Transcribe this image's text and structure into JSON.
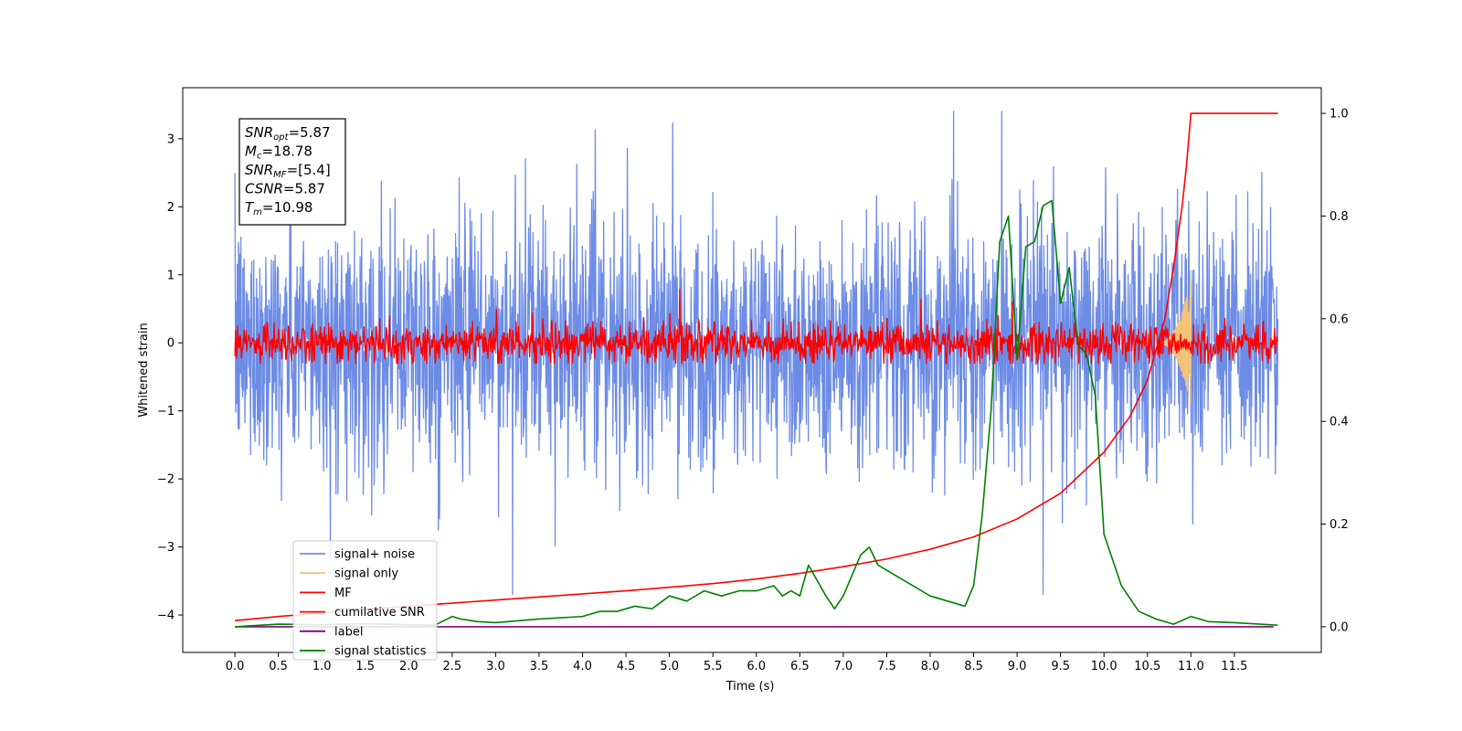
{
  "chart_data": {
    "type": "line",
    "xlabel": "Time (s)",
    "ylabel": "Whitened strain",
    "xlim": [
      -0.6,
      12.5
    ],
    "ylim_left": [
      -4.55,
      3.75
    ],
    "ylim_right": [
      -0.05,
      1.05
    ],
    "x_ticks": [
      "0.0",
      "0.5",
      "1.0",
      "1.5",
      "2.0",
      "2.5",
      "3.0",
      "3.5",
      "4.0",
      "4.5",
      "5.0",
      "5.5",
      "6.0",
      "6.5",
      "7.0",
      "7.5",
      "8.0",
      "8.5",
      "9.0",
      "9.5",
      "10.0",
      "10.5",
      "11.0",
      "11.5"
    ],
    "y_ticks_left": [
      "3",
      "2",
      "1",
      "0",
      "−1",
      "−2",
      "−3",
      "−4"
    ],
    "y_ticks_right": [
      "1.0",
      "0.8",
      "0.6",
      "0.4",
      "0.2",
      "0.0"
    ],
    "legend_position": "lower-left",
    "legend": [
      "signal+ noise",
      "signal only",
      "MF",
      "cumilative SNR",
      "label",
      "signal statistics"
    ],
    "annotations": {
      "snr_opt": {
        "name": "SNR",
        "sub": "opt",
        "value": "=5.87"
      },
      "mc": {
        "name": "M",
        "sub": "c",
        "value": "=18.78"
      },
      "snr_mf": {
        "name": "SNR",
        "sub": "MF",
        "value": "=[5.4]"
      },
      "csnr": {
        "name": "CSNR",
        "sub": "",
        "value": "=5.87"
      },
      "tm": {
        "name": "T",
        "sub": "m",
        "value": "=10.98"
      }
    },
    "series": [
      {
        "name": "signal+ noise",
        "axis": "left",
        "color": "#6d8ce6",
        "style": "noise",
        "x_range": [
          0,
          12.0
        ],
        "envelope": [
          -3.7,
          3.4
        ],
        "typical_std": 0.9
      },
      {
        "name": "signal only",
        "axis": "left",
        "color": "#f5c27a",
        "style": "chirp",
        "x_range": [
          10.6,
          11.0
        ],
        "peak_amplitude": 0.95
      },
      {
        "name": "MF",
        "axis": "left",
        "color": "#ff0000",
        "style": "noise",
        "x_range": [
          0,
          12.0
        ],
        "envelope": [
          -0.3,
          0.8
        ],
        "typical_std": 0.15
      },
      {
        "name": "cumilative SNR",
        "axis": "right",
        "color": "#ff0000",
        "x": [
          0,
          0.5,
          1,
          1.5,
          2,
          2.5,
          3,
          3.5,
          4,
          4.5,
          5,
          5.5,
          6,
          6.5,
          7,
          7.5,
          8,
          8.5,
          9,
          9.5,
          10,
          10.3,
          10.5,
          10.7,
          10.8,
          10.9,
          10.95,
          10.98,
          11.0,
          12.0
        ],
        "y": [
          0.012,
          0.02,
          0.027,
          0.034,
          0.04,
          0.046,
          0.052,
          0.058,
          0.064,
          0.07,
          0.077,
          0.084,
          0.093,
          0.104,
          0.117,
          0.132,
          0.151,
          0.175,
          0.21,
          0.26,
          0.34,
          0.41,
          0.48,
          0.6,
          0.7,
          0.82,
          0.9,
          0.96,
          1.0,
          1.0
        ]
      },
      {
        "name": "label",
        "axis": "right",
        "color": "#800080",
        "x": [
          0,
          11.95
        ],
        "y": [
          0.0,
          0.0
        ]
      },
      {
        "name": "signal statistics",
        "axis": "right",
        "color": "#008000",
        "x": [
          0,
          0.5,
          1,
          1.5,
          2,
          2.3,
          2.5,
          2.6,
          2.8,
          3,
          3.5,
          4,
          4.2,
          4.4,
          4.6,
          4.8,
          5,
          5.2,
          5.4,
          5.6,
          5.8,
          6,
          6.2,
          6.3,
          6.4,
          6.5,
          6.6,
          6.8,
          6.9,
          7,
          7.2,
          7.3,
          7.4,
          7.6,
          7.8,
          8,
          8.2,
          8.4,
          8.5,
          8.6,
          8.7,
          8.8,
          8.9,
          9,
          9.1,
          9.2,
          9.3,
          9.4,
          9.5,
          9.6,
          9.7,
          9.8,
          9.9,
          10,
          10.2,
          10.4,
          10.6,
          10.8,
          11,
          11.2,
          11.5,
          12.0
        ],
        "y": [
          0.0,
          0.005,
          0.004,
          0.006,
          0.004,
          0.003,
          0.02,
          0.015,
          0.01,
          0.008,
          0.015,
          0.02,
          0.03,
          0.03,
          0.04,
          0.035,
          0.06,
          0.05,
          0.07,
          0.06,
          0.07,
          0.07,
          0.08,
          0.06,
          0.07,
          0.06,
          0.12,
          0.06,
          0.035,
          0.06,
          0.14,
          0.155,
          0.12,
          0.1,
          0.08,
          0.06,
          0.05,
          0.04,
          0.08,
          0.22,
          0.42,
          0.75,
          0.8,
          0.52,
          0.74,
          0.75,
          0.82,
          0.83,
          0.63,
          0.7,
          0.55,
          0.53,
          0.45,
          0.18,
          0.08,
          0.03,
          0.015,
          0.005,
          0.02,
          0.01,
          0.008,
          0.003
        ]
      }
    ]
  }
}
